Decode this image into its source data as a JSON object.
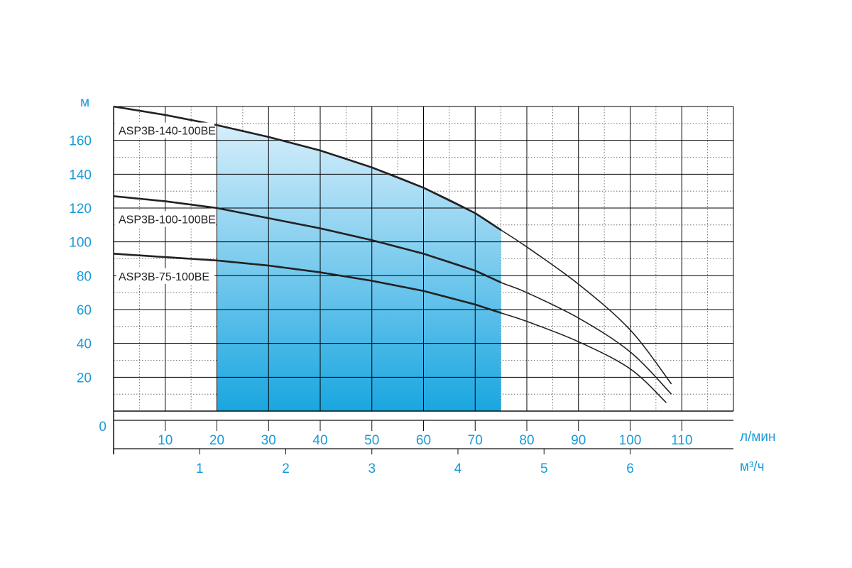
{
  "chart_data": {
    "type": "line",
    "x_unit": "л/мин",
    "x2_unit": "м³/ч",
    "y_unit": "м",
    "xlim": [
      0,
      120
    ],
    "ylim": [
      0,
      180
    ],
    "x_ticks": [
      10,
      20,
      30,
      40,
      50,
      60,
      70,
      80,
      90,
      100,
      110
    ],
    "x2_ticks": [
      1,
      2,
      3,
      4,
      5,
      6
    ],
    "y_ticks": [
      0,
      20,
      40,
      60,
      80,
      100,
      120,
      140,
      160
    ],
    "grid": true,
    "operating_range_x": [
      20,
      75
    ],
    "colors": {
      "axis_text": "#1a9ad6",
      "grid": "#000000",
      "curve": "#222222",
      "band_top": "#d6eefb",
      "band_bottom": "#1aa6e0"
    },
    "series": [
      {
        "name": "ASP3B-140-100BE",
        "x": [
          0,
          10,
          20,
          30,
          40,
          50,
          60,
          70,
          75,
          80,
          90,
          100,
          108
        ],
        "y": [
          180,
          175,
          169,
          162,
          154,
          144,
          132,
          117,
          107,
          97,
          75,
          48,
          16
        ]
      },
      {
        "name": "ASP3B-100-100BE",
        "x": [
          0,
          10,
          20,
          30,
          40,
          50,
          60,
          70,
          75,
          80,
          90,
          100,
          108
        ],
        "y": [
          127,
          124,
          120,
          114,
          108,
          101,
          93,
          83,
          76,
          70,
          55,
          35,
          10
        ]
      },
      {
        "name": "ASP3B-75-100BE",
        "x": [
          0,
          10,
          20,
          30,
          40,
          50,
          60,
          70,
          75,
          80,
          90,
          100,
          107
        ],
        "y": [
          93,
          91,
          89,
          86,
          82,
          77,
          71,
          63,
          58,
          53,
          41,
          25,
          5
        ]
      }
    ]
  }
}
